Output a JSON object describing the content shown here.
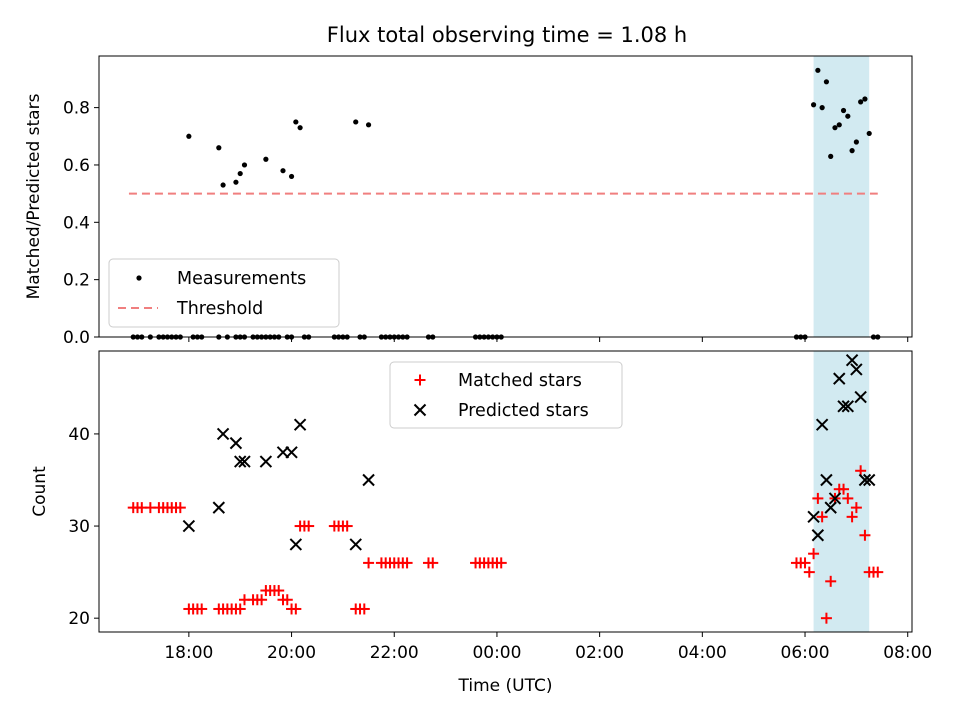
{
  "title": "Flux total observing time = 1.08 h",
  "colors": {
    "measurement": "#000000",
    "threshold": "#f07f7f",
    "matched": "#ff0000",
    "predicted": "#000000",
    "window_fill": "#add8e6"
  },
  "chart_data": [
    {
      "type": "scatter",
      "ylabel": "Matched/Predicted stars",
      "ylim": [
        0,
        0.98
      ],
      "yticks": [
        0.0,
        0.2,
        0.4,
        0.6,
        0.8
      ],
      "ytick_labels": [
        "0.0",
        "0.2",
        "0.4",
        "0.6",
        "0.8"
      ],
      "legend": {
        "position": "lower-left",
        "entries": [
          {
            "label": "Measurements",
            "marker": "dot"
          },
          {
            "label": "Threshold",
            "marker": "dashed-line"
          }
        ]
      },
      "threshold": {
        "name": "Threshold",
        "y": 0.5,
        "x_from": "16:50",
        "x_to": "07:25"
      },
      "shaded_window": {
        "from": "06:10",
        "to": "07:15"
      },
      "series": [
        {
          "name": "Measurements",
          "points": [
            [
              "18:00",
              0.7
            ],
            [
              "18:35",
              0.66
            ],
            [
              "18:40",
              0.53
            ],
            [
              "18:55",
              0.54
            ],
            [
              "19:00",
              0.57
            ],
            [
              "19:05",
              0.6
            ],
            [
              "19:30",
              0.62
            ],
            [
              "19:50",
              0.58
            ],
            [
              "20:00",
              0.56
            ],
            [
              "20:05",
              0.75
            ],
            [
              "20:10",
              0.73
            ],
            [
              "21:15",
              0.75
            ],
            [
              "21:30",
              0.74
            ],
            [
              "06:10",
              0.81
            ],
            [
              "06:15",
              0.93
            ],
            [
              "06:20",
              0.8
            ],
            [
              "06:25",
              0.89
            ],
            [
              "06:30",
              0.63
            ],
            [
              "06:35",
              0.73
            ],
            [
              "06:40",
              0.74
            ],
            [
              "06:45",
              0.79
            ],
            [
              "06:50",
              0.77
            ],
            [
              "06:55",
              0.65
            ],
            [
              "07:00",
              0.68
            ],
            [
              "07:05",
              0.82
            ],
            [
              "07:10",
              0.83
            ],
            [
              "07:15",
              0.71
            ],
            [
              "16:55",
              0.0
            ],
            [
              "17:00",
              0.0
            ],
            [
              "17:05",
              0.0
            ],
            [
              "17:15",
              0.0
            ],
            [
              "17:25",
              0.0
            ],
            [
              "17:30",
              0.0
            ],
            [
              "17:35",
              0.0
            ],
            [
              "17:40",
              0.0
            ],
            [
              "17:45",
              0.0
            ],
            [
              "17:50",
              0.0
            ],
            [
              "18:05",
              0.0
            ],
            [
              "18:10",
              0.0
            ],
            [
              "18:15",
              0.0
            ],
            [
              "18:35",
              0.0
            ],
            [
              "18:45",
              0.0
            ],
            [
              "18:55",
              0.0
            ],
            [
              "19:00",
              0.0
            ],
            [
              "19:05",
              0.0
            ],
            [
              "19:15",
              0.0
            ],
            [
              "19:20",
              0.0
            ],
            [
              "19:25",
              0.0
            ],
            [
              "19:30",
              0.0
            ],
            [
              "19:35",
              0.0
            ],
            [
              "19:40",
              0.0
            ],
            [
              "19:45",
              0.0
            ],
            [
              "19:55",
              0.0
            ],
            [
              "20:00",
              0.0
            ],
            [
              "20:15",
              0.0
            ],
            [
              "20:20",
              0.0
            ],
            [
              "20:50",
              0.0
            ],
            [
              "20:55",
              0.0
            ],
            [
              "21:00",
              0.0
            ],
            [
              "21:05",
              0.0
            ],
            [
              "21:20",
              0.0
            ],
            [
              "21:25",
              0.0
            ],
            [
              "21:45",
              0.0
            ],
            [
              "21:50",
              0.0
            ],
            [
              "21:55",
              0.0
            ],
            [
              "22:00",
              0.0
            ],
            [
              "22:05",
              0.0
            ],
            [
              "22:10",
              0.0
            ],
            [
              "22:15",
              0.0
            ],
            [
              "22:40",
              0.0
            ],
            [
              "22:45",
              0.0
            ],
            [
              "23:35",
              0.0
            ],
            [
              "23:40",
              0.0
            ],
            [
              "23:45",
              0.0
            ],
            [
              "23:50",
              0.0
            ],
            [
              "23:55",
              0.0
            ],
            [
              "00:00",
              0.0
            ],
            [
              "00:05",
              0.0
            ],
            [
              "05:50",
              0.0
            ],
            [
              "05:55",
              0.0
            ],
            [
              "06:00",
              0.0
            ],
            [
              "07:20",
              0.0
            ],
            [
              "07:25",
              0.0
            ]
          ]
        }
      ]
    },
    {
      "type": "scatter",
      "xlabel": "Time (UTC)",
      "ylabel": "Count",
      "ylim": [
        18.5,
        49
      ],
      "yticks": [
        20,
        30,
        40
      ],
      "ytick_labels": [
        "20",
        "30",
        "40"
      ],
      "xlim": [
        "16:15",
        "08:05"
      ],
      "xtick_labels": [
        "18:00",
        "20:00",
        "22:00",
        "00:00",
        "02:00",
        "04:00",
        "06:00",
        "08:00"
      ],
      "legend": {
        "position": "upper-center",
        "entries": [
          {
            "label": "Matched stars",
            "marker": "plus"
          },
          {
            "label": "Predicted stars",
            "marker": "x"
          }
        ]
      },
      "shaded_window": {
        "from": "06:10",
        "to": "07:15"
      },
      "series": [
        {
          "name": "Matched stars",
          "points": [
            [
              "16:55",
              32
            ],
            [
              "17:00",
              32
            ],
            [
              "17:05",
              32
            ],
            [
              "17:15",
              32
            ],
            [
              "17:25",
              32
            ],
            [
              "17:30",
              32
            ],
            [
              "17:35",
              32
            ],
            [
              "17:40",
              32
            ],
            [
              "17:45",
              32
            ],
            [
              "17:50",
              32
            ],
            [
              "18:00",
              21
            ],
            [
              "18:05",
              21
            ],
            [
              "18:10",
              21
            ],
            [
              "18:15",
              21
            ],
            [
              "18:35",
              21
            ],
            [
              "18:40",
              21
            ],
            [
              "18:45",
              21
            ],
            [
              "18:50",
              21
            ],
            [
              "18:55",
              21
            ],
            [
              "19:00",
              21
            ],
            [
              "19:05",
              22
            ],
            [
              "19:15",
              22
            ],
            [
              "19:20",
              22
            ],
            [
              "19:25",
              22
            ],
            [
              "19:30",
              23
            ],
            [
              "19:35",
              23
            ],
            [
              "19:40",
              23
            ],
            [
              "19:45",
              23
            ],
            [
              "19:50",
              22
            ],
            [
              "19:55",
              22
            ],
            [
              "20:00",
              21
            ],
            [
              "20:05",
              21
            ],
            [
              "20:10",
              30
            ],
            [
              "20:15",
              30
            ],
            [
              "20:20",
              30
            ],
            [
              "20:50",
              30
            ],
            [
              "20:55",
              30
            ],
            [
              "21:00",
              30
            ],
            [
              "21:05",
              30
            ],
            [
              "21:15",
              21
            ],
            [
              "21:20",
              21
            ],
            [
              "21:25",
              21
            ],
            [
              "21:30",
              26
            ],
            [
              "21:45",
              26
            ],
            [
              "21:50",
              26
            ],
            [
              "21:55",
              26
            ],
            [
              "22:00",
              26
            ],
            [
              "22:05",
              26
            ],
            [
              "22:10",
              26
            ],
            [
              "22:15",
              26
            ],
            [
              "22:40",
              26
            ],
            [
              "22:45",
              26
            ],
            [
              "23:35",
              26
            ],
            [
              "23:40",
              26
            ],
            [
              "23:45",
              26
            ],
            [
              "23:50",
              26
            ],
            [
              "23:55",
              26
            ],
            [
              "00:00",
              26
            ],
            [
              "00:05",
              26
            ],
            [
              "05:50",
              26
            ],
            [
              "05:55",
              26
            ],
            [
              "06:00",
              26
            ],
            [
              "06:05",
              25
            ],
            [
              "06:10",
              27
            ],
            [
              "06:15",
              33
            ],
            [
              "06:20",
              31
            ],
            [
              "06:25",
              20
            ],
            [
              "06:30",
              24
            ],
            [
              "06:35",
              33
            ],
            [
              "06:40",
              34
            ],
            [
              "06:45",
              34
            ],
            [
              "06:50",
              33
            ],
            [
              "06:55",
              31
            ],
            [
              "07:00",
              32
            ],
            [
              "07:05",
              36
            ],
            [
              "07:10",
              29
            ],
            [
              "07:15",
              25
            ],
            [
              "07:20",
              25
            ],
            [
              "07:25",
              25
            ]
          ]
        },
        {
          "name": "Predicted stars",
          "points": [
            [
              "18:00",
              30
            ],
            [
              "18:35",
              32
            ],
            [
              "18:40",
              40
            ],
            [
              "18:55",
              39
            ],
            [
              "19:00",
              37
            ],
            [
              "19:05",
              37
            ],
            [
              "19:30",
              37
            ],
            [
              "19:50",
              38
            ],
            [
              "20:00",
              38
            ],
            [
              "20:05",
              28
            ],
            [
              "20:10",
              41
            ],
            [
              "21:15",
              28
            ],
            [
              "21:30",
              35
            ],
            [
              "06:10",
              31
            ],
            [
              "06:15",
              29
            ],
            [
              "06:20",
              41
            ],
            [
              "06:25",
              35
            ],
            [
              "06:30",
              32
            ],
            [
              "06:35",
              33
            ],
            [
              "06:40",
              46
            ],
            [
              "06:45",
              43
            ],
            [
              "06:50",
              43
            ],
            [
              "06:55",
              48
            ],
            [
              "07:00",
              47
            ],
            [
              "07:05",
              44
            ],
            [
              "07:10",
              35
            ],
            [
              "07:15",
              35
            ]
          ]
        }
      ]
    }
  ]
}
